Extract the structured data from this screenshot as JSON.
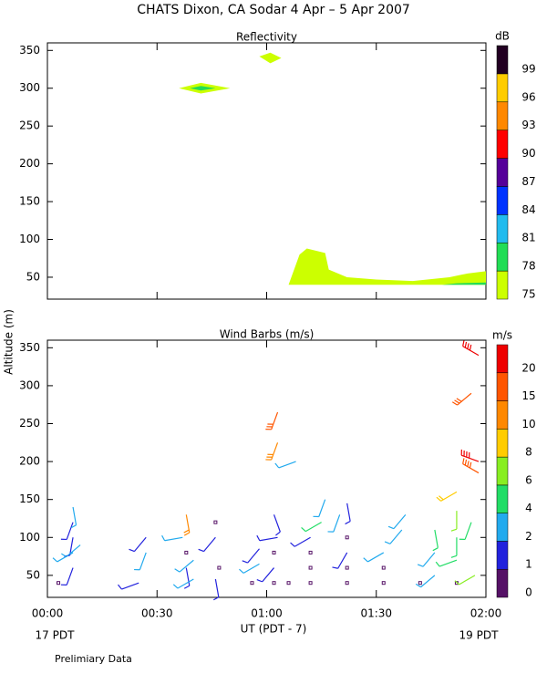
{
  "header": {
    "title": "CHATS Dixon, CA  Sodar   4 Apr –  5 Apr 2007",
    "y_label": "Altitude (m)",
    "x_label": "UT  (PDT - 7)",
    "date_left": "17 PDT",
    "date_right": "19 PDT",
    "footnote": "Prelimiary Data"
  },
  "chart_data": [
    {
      "type": "contour",
      "title": "Reflectivity",
      "xlim": [
        0,
        120
      ],
      "ylim": [
        21,
        360
      ],
      "xticks": [
        0,
        30,
        60,
        90,
        120
      ],
      "yticks": [
        50,
        100,
        150,
        200,
        250,
        300,
        350
      ],
      "colorbar": {
        "label": "dB",
        "levels": [
          75,
          78,
          81,
          84,
          87,
          90,
          93,
          96,
          99
        ],
        "colors": [
          "#ccff00",
          "#22dd55",
          "#22bbee",
          "#0033ff",
          "#550099",
          "#ff0000",
          "#ff8800",
          "#ffcc00",
          "#220022"
        ]
      },
      "regions": [
        {
          "level": 75,
          "points": [
            [
              36,
              300
            ],
            [
              42,
              307
            ],
            [
              50,
              300
            ],
            [
              42,
              293
            ]
          ]
        },
        {
          "level": 78,
          "points": [
            [
              39,
              300
            ],
            [
              42,
              303
            ],
            [
              46,
              300
            ],
            [
              42,
              297
            ]
          ]
        },
        {
          "level": 75,
          "points": [
            [
              58,
              342
            ],
            [
              61,
              347
            ],
            [
              64,
              340
            ],
            [
              61,
              333
            ]
          ]
        },
        {
          "level": 75,
          "points": [
            [
              66,
              40
            ],
            [
              69,
              80
            ],
            [
              71,
              88
            ],
            [
              76,
              82
            ],
            [
              77,
              60
            ],
            [
              82,
              50
            ],
            [
              90,
              47
            ],
            [
              100,
              45
            ],
            [
              110,
              50
            ],
            [
              115,
              55
            ],
            [
              120,
              58
            ],
            [
              120,
              40
            ]
          ]
        },
        {
          "level": 78,
          "points": [
            [
              108,
              40
            ],
            [
              112,
              42
            ],
            [
              120,
              43
            ],
            [
              120,
              40
            ]
          ]
        }
      ]
    },
    {
      "type": "barbs",
      "title": "Wind Barbs (m/s)",
      "xlim": [
        0,
        120
      ],
      "ylim": [
        21,
        360
      ],
      "xticks": [
        {
          "value": 0,
          "label": "00:00"
        },
        {
          "value": 30,
          "label": "00:30"
        },
        {
          "value": 60,
          "label": "01:00"
        },
        {
          "value": 90,
          "label": "01:30"
        },
        {
          "value": 120,
          "label": "02:00"
        }
      ],
      "yticks": [
        50,
        100,
        150,
        200,
        250,
        300,
        350
      ],
      "colorbar": {
        "label": "m/s",
        "levels": [
          0,
          1,
          2,
          4,
          6,
          8,
          10,
          15,
          20
        ],
        "colors": [
          "#551166",
          "#2222dd",
          "#22aaee",
          "#22dd66",
          "#88ee22",
          "#ffcc00",
          "#ff8800",
          "#ff5500",
          "#ee0000"
        ]
      },
      "barbs": [
        [
          3,
          40,
          0.5,
          0
        ],
        [
          7,
          60,
          1.5,
          200
        ],
        [
          7,
          80,
          3,
          240
        ],
        [
          7,
          100,
          1.5,
          190
        ],
        [
          7,
          120,
          1.5,
          200
        ],
        [
          7,
          140,
          3,
          170
        ],
        [
          9,
          90,
          3,
          230
        ],
        [
          25,
          40,
          1.5,
          250
        ],
        [
          27,
          80,
          3,
          200
        ],
        [
          27,
          100,
          1.5,
          220
        ],
        [
          37,
          100,
          3,
          260
        ],
        [
          38,
          130,
          11,
          170
        ],
        [
          38,
          80,
          0.5,
          0
        ],
        [
          38,
          60,
          1.5,
          170
        ],
        [
          40,
          45,
          3,
          240
        ],
        [
          40,
          70,
          3,
          230
        ],
        [
          46,
          120,
          0.5,
          0
        ],
        [
          46,
          100,
          1.5,
          220
        ],
        [
          47,
          60,
          0.5,
          0
        ],
        [
          46,
          45,
          1.5,
          170
        ],
        [
          56,
          40,
          0.5,
          0
        ],
        [
          58,
          85,
          1.5,
          220
        ],
        [
          58,
          65,
          3,
          240
        ],
        [
          62,
          40,
          0.5,
          0
        ],
        [
          62,
          80,
          0.5,
          0
        ],
        [
          62,
          60,
          1.5,
          220
        ],
        [
          63,
          100,
          1.5,
          260
        ],
        [
          62,
          130,
          1.5,
          160
        ],
        [
          63,
          265,
          16,
          200
        ],
        [
          63,
          225,
          13,
          200
        ],
        [
          66,
          40,
          0.5,
          0
        ],
        [
          68,
          200,
          3,
          250
        ],
        [
          72,
          40,
          0.5,
          0
        ],
        [
          72,
          60,
          0.5,
          0
        ],
        [
          72,
          80,
          0.5,
          0
        ],
        [
          72,
          100,
          1.5,
          240
        ],
        [
          75,
          120,
          5,
          240
        ],
        [
          76,
          150,
          3,
          200
        ],
        [
          80,
          130,
          3,
          200
        ],
        [
          82,
          40,
          0.5,
          0
        ],
        [
          82,
          60,
          0.5,
          0
        ],
        [
          82,
          80,
          1.5,
          210
        ],
        [
          82,
          100,
          0.5,
          0
        ],
        [
          82,
          145,
          1.5,
          170
        ],
        [
          92,
          40,
          0.5,
          0
        ],
        [
          92,
          60,
          0.5,
          0
        ],
        [
          92,
          80,
          3,
          240
        ],
        [
          97,
          110,
          3,
          220
        ],
        [
          98,
          130,
          3,
          220
        ],
        [
          102,
          40,
          0.5,
          0
        ],
        [
          106,
          50,
          3,
          230
        ],
        [
          106,
          80,
          3,
          220
        ],
        [
          106,
          110,
          5,
          170
        ],
        [
          112,
          40,
          0.5,
          0
        ],
        [
          112,
          70,
          5,
          250
        ],
        [
          112,
          100,
          5,
          180
        ],
        [
          112,
          135,
          6,
          180
        ],
        [
          112,
          160,
          9,
          240
        ],
        [
          116,
          290,
          16,
          230
        ],
        [
          118,
          340,
          20,
          300
        ],
        [
          118,
          200,
          20,
          290
        ],
        [
          118,
          185,
          19,
          300
        ],
        [
          117,
          50,
          6,
          240
        ],
        [
          116,
          120,
          4,
          200
        ]
      ]
    }
  ]
}
